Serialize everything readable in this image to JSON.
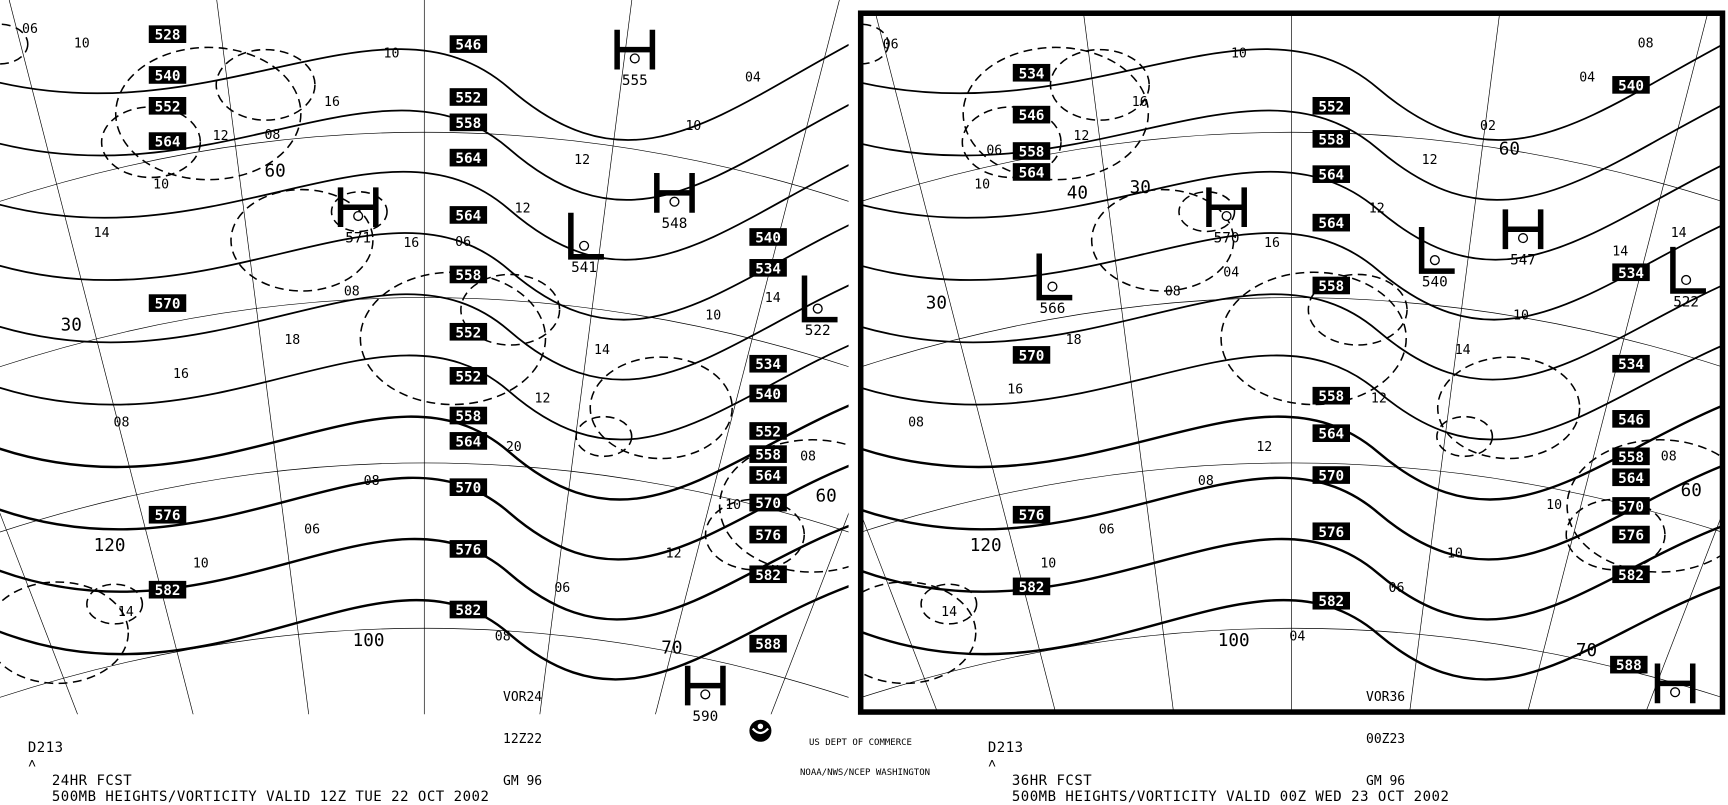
{
  "panels": [
    {
      "id": "24hr",
      "caption_code": "D213",
      "caption_mark": "˄",
      "forecast": "24HR FCST",
      "title": "500MB HEIGHTS/VORTICITY VALID 12Z TUE 22 OCT 2002",
      "vor_block": [
        "VOR24",
        "12Z22",
        "GM 96"
      ],
      "height_labels": [
        "528",
        "540",
        "552",
        "564",
        "546",
        "552",
        "558",
        "564",
        "564",
        "558",
        "552",
        "552",
        "558",
        "564",
        "570",
        "576",
        "582",
        "576",
        "582",
        "570",
        "540",
        "534",
        "534",
        "540",
        "552",
        "558",
        "564",
        "570",
        "576",
        "582",
        "588"
      ],
      "centers": [
        {
          "type": "H",
          "value": "571"
        },
        {
          "type": "H",
          "value": "555"
        },
        {
          "type": "L",
          "value": "541"
        },
        {
          "type": "H",
          "value": "548"
        },
        {
          "type": "L",
          "value": "522"
        },
        {
          "type": "H",
          "value": "590"
        }
      ],
      "vorticity_labels": [
        "06",
        "12",
        "16",
        "14",
        "08",
        "10",
        "10",
        "12",
        "14",
        "16",
        "08",
        "06",
        "04",
        "10",
        "08",
        "12",
        "10",
        "14",
        "16",
        "12",
        "10",
        "08",
        "06",
        "08",
        "10",
        "14",
        "18",
        "20",
        "12",
        "10",
        "08",
        "06"
      ],
      "lat_labels": [
        "60",
        "30",
        "120",
        "100",
        "70",
        "60"
      ]
    },
    {
      "id": "36hr",
      "caption_code": "D213",
      "caption_mark": "˄",
      "forecast": "36HR FCST",
      "title": "500MB HEIGHTS/VORTICITY VALID 00Z WED 23 OCT 2002",
      "vor_block": [
        "VOR36",
        "00Z23",
        "GM 96"
      ],
      "height_labels": [
        "534",
        "546",
        "558",
        "564",
        "570",
        "552",
        "558",
        "564",
        "564",
        "558",
        "558",
        "564",
        "570",
        "576",
        "582",
        "576",
        "582",
        "540",
        "534",
        "534",
        "546",
        "558",
        "564",
        "570",
        "576",
        "582",
        "588"
      ],
      "centers": [
        {
          "type": "H",
          "value": "570"
        },
        {
          "type": "L",
          "value": "566"
        },
        {
          "type": "L",
          "value": "540"
        },
        {
          "type": "H",
          "value": "547"
        },
        {
          "type": "L",
          "value": "522"
        },
        {
          "type": "H",
          "value": ""
        }
      ],
      "vorticity_labels": [
        "06",
        "12",
        "16",
        "14",
        "08",
        "10",
        "10",
        "12",
        "14",
        "16",
        "08",
        "06",
        "04",
        "10",
        "08",
        "12",
        "10",
        "14",
        "16",
        "12",
        "10",
        "08",
        "06",
        "04",
        "02",
        "14",
        "18",
        "12",
        "10",
        "08",
        "06",
        "04"
      ],
      "lat_labels": [
        "60",
        "30",
        "120",
        "100",
        "70",
        "60",
        "40",
        "30"
      ]
    }
  ],
  "agency": {
    "line1": "US DEPT OF COMMERCE",
    "line2": "NOAA/NWS/NCEP WASHINGTON"
  },
  "logo": "noaa-logo",
  "colors": {
    "ink": "#000000",
    "background": "#ffffff"
  }
}
